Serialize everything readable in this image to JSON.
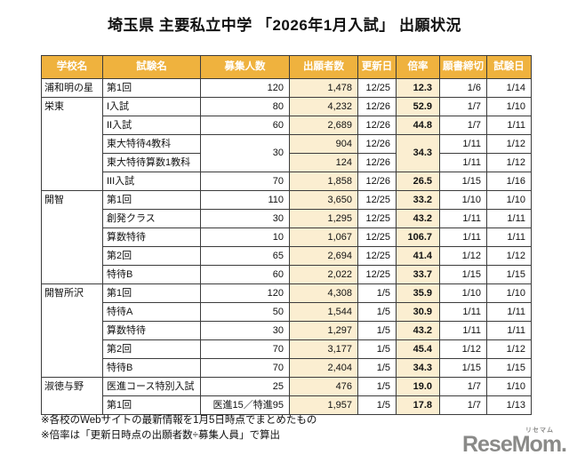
{
  "title": "埼玉県 主要私立中学 「2026年1月入試」 出願状況",
  "colors": {
    "header_bg": "#EFB23E",
    "highlight_bg": "#FBEED1",
    "border": "#3c3c3c",
    "logo_gray": "#8a8a88"
  },
  "table": {
    "headers": [
      "学校名",
      "試験名",
      "募集人数",
      "出願者数",
      "更新日",
      "倍率",
      "願書締切",
      "試験日"
    ],
    "column_keys": [
      "school",
      "exam",
      "capacity",
      "applicants",
      "updated",
      "ratio",
      "deadline",
      "exam-date"
    ],
    "schools": [
      {
        "name": "浦和明の星",
        "rows": [
          {
            "exam": "第1回",
            "capacity": "120",
            "applicants": "1,478",
            "updated": "12/25",
            "ratio": "12.3",
            "deadline": "1/6",
            "exam_date": "1/14"
          }
        ]
      },
      {
        "name": "栄東",
        "rows": [
          {
            "exam": "I入試",
            "capacity": "80",
            "applicants": "4,232",
            "updated": "12/26",
            "ratio": "52.9",
            "deadline": "1/7",
            "exam_date": "1/10"
          },
          {
            "exam": "II入試",
            "capacity": "60",
            "applicants": "2,689",
            "updated": "12/26",
            "ratio": "44.8",
            "deadline": "1/7",
            "exam_date": "1/11"
          },
          {
            "exam": "東大特待4教科",
            "capacity": {
              "value": "30",
              "span": 2
            },
            "applicants": "904",
            "updated": "12/26",
            "ratio": {
              "value": "34.3",
              "span": 2
            },
            "deadline": "1/11",
            "exam_date": "1/12"
          },
          {
            "exam": "東大特待算数1教科",
            "capacity": null,
            "applicants": "124",
            "updated": "12/26",
            "ratio": null,
            "deadline": "1/11",
            "exam_date": "1/12"
          },
          {
            "exam": "III入試",
            "capacity": "70",
            "applicants": "1,858",
            "updated": "12/26",
            "ratio": "26.5",
            "deadline": "1/15",
            "exam_date": "1/16"
          }
        ]
      },
      {
        "name": "開智",
        "rows": [
          {
            "exam": "第1回",
            "capacity": "110",
            "applicants": "3,650",
            "updated": "12/25",
            "ratio": "33.2",
            "deadline": "1/10",
            "exam_date": "1/10"
          },
          {
            "exam": "創発クラス",
            "capacity": "30",
            "applicants": "1,295",
            "updated": "12/25",
            "ratio": "43.2",
            "deadline": "1/11",
            "exam_date": "1/11"
          },
          {
            "exam": "算数特待",
            "capacity": "10",
            "applicants": "1,067",
            "updated": "12/25",
            "ratio": "106.7",
            "deadline": "1/11",
            "exam_date": "1/11"
          },
          {
            "exam": "第2回",
            "capacity": "65",
            "applicants": "2,694",
            "updated": "12/25",
            "ratio": "41.4",
            "deadline": "1/12",
            "exam_date": "1/12"
          },
          {
            "exam": "特待B",
            "capacity": "60",
            "applicants": "2,022",
            "updated": "12/25",
            "ratio": "33.7",
            "deadline": "1/15",
            "exam_date": "1/15"
          }
        ]
      },
      {
        "name": "開智所沢",
        "rows": [
          {
            "exam": "第1回",
            "capacity": "120",
            "applicants": "4,308",
            "updated": "1/5",
            "ratio": "35.9",
            "deadline": "1/10",
            "exam_date": "1/10"
          },
          {
            "exam": "特待A",
            "capacity": "50",
            "applicants": "1,544",
            "updated": "1/5",
            "ratio": "30.9",
            "deadline": "1/11",
            "exam_date": "1/11"
          },
          {
            "exam": "算数特待",
            "capacity": "30",
            "applicants": "1,297",
            "updated": "1/5",
            "ratio": "43.2",
            "deadline": "1/11",
            "exam_date": "1/11"
          },
          {
            "exam": "第2回",
            "capacity": "70",
            "applicants": "3,177",
            "updated": "1/5",
            "ratio": "45.4",
            "deadline": "1/12",
            "exam_date": "1/12"
          },
          {
            "exam": "特待B",
            "capacity": "70",
            "applicants": "2,404",
            "updated": "1/5",
            "ratio": "34.3",
            "deadline": "1/15",
            "exam_date": "1/15"
          }
        ]
      },
      {
        "name": "淑徳与野",
        "rows": [
          {
            "exam": "医進コース特別入試",
            "capacity": "25",
            "applicants": "476",
            "updated": "1/5",
            "ratio": "19.0",
            "deadline": "1/7",
            "exam_date": "1/10"
          },
          {
            "exam": "第1回",
            "capacity": "医進15／特進95",
            "applicants": "1,957",
            "updated": "1/5",
            "ratio": "17.8",
            "deadline": "1/7",
            "exam_date": "1/13"
          }
        ]
      }
    ]
  },
  "footnotes": [
    "※各校のWebサイトの最新情報を1月5日時点でまとめたもの",
    "※倍率は「更新日時点の出願者数÷募集人員」で算出"
  ],
  "logo": {
    "text": "ReseMom.",
    "ruby": "リセマム"
  }
}
